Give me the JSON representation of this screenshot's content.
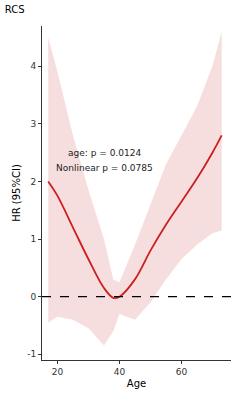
{
  "chart_data": {
    "type": "line",
    "title": "RCS",
    "x_label": "Age",
    "y_label": "HR (95%CI)",
    "x": [
      17,
      20,
      25,
      30,
      35,
      38,
      40,
      45,
      50,
      55,
      60,
      65,
      70,
      73
    ],
    "values": [
      2.0,
      1.75,
      1.2,
      0.65,
      0.15,
      -0.02,
      0.0,
      0.3,
      0.8,
      1.25,
      1.65,
      2.05,
      2.5,
      2.8
    ],
    "ci_lower": [
      -0.45,
      -0.35,
      -0.4,
      -0.55,
      -0.85,
      -0.6,
      -0.3,
      -0.4,
      -0.1,
      0.3,
      0.65,
      0.9,
      1.1,
      1.15
    ],
    "ci_upper": [
      4.5,
      3.9,
      2.8,
      1.85,
      1.0,
      0.3,
      0.25,
      0.9,
      1.6,
      2.3,
      2.8,
      3.3,
      4.0,
      4.6
    ],
    "color": "#cc1f1f",
    "reference_line": 0,
    "annotations": [
      "age: p = 0.0124",
      "Nonlinear p = 0.0785"
    ],
    "xlim": [
      15,
      76
    ],
    "xticks": [
      20,
      40,
      60
    ],
    "ylim": [
      -1.1,
      4.7
    ],
    "yticks": [
      -1,
      0,
      1,
      2,
      3,
      4
    ],
    "grid": false
  }
}
